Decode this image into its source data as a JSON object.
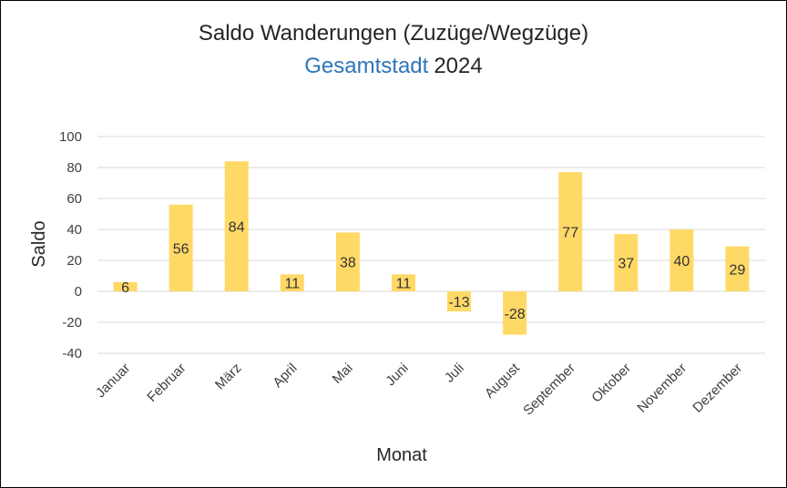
{
  "chart_data": {
    "type": "bar",
    "title": "Saldo Wanderungen (Zuzüge/Wegzüge)",
    "subtitle_part1": "Gesamtstadt",
    "subtitle_part2": "2024",
    "xlabel": "Monat",
    "ylabel": "Saldo",
    "ylim": [
      -40,
      100
    ],
    "yticks": [
      100,
      80,
      60,
      40,
      20,
      0,
      -20,
      -40
    ],
    "categories": [
      "Januar",
      "Februar",
      "März",
      "April",
      "Mai",
      "Juni",
      "Juli",
      "August",
      "September",
      "Oktober",
      "November",
      "Dezember"
    ],
    "values": [
      6,
      56,
      84,
      11,
      38,
      11,
      -13,
      -28,
      77,
      37,
      40,
      29
    ],
    "bar_color": "#ffd966",
    "grid": true,
    "legend": "none"
  }
}
